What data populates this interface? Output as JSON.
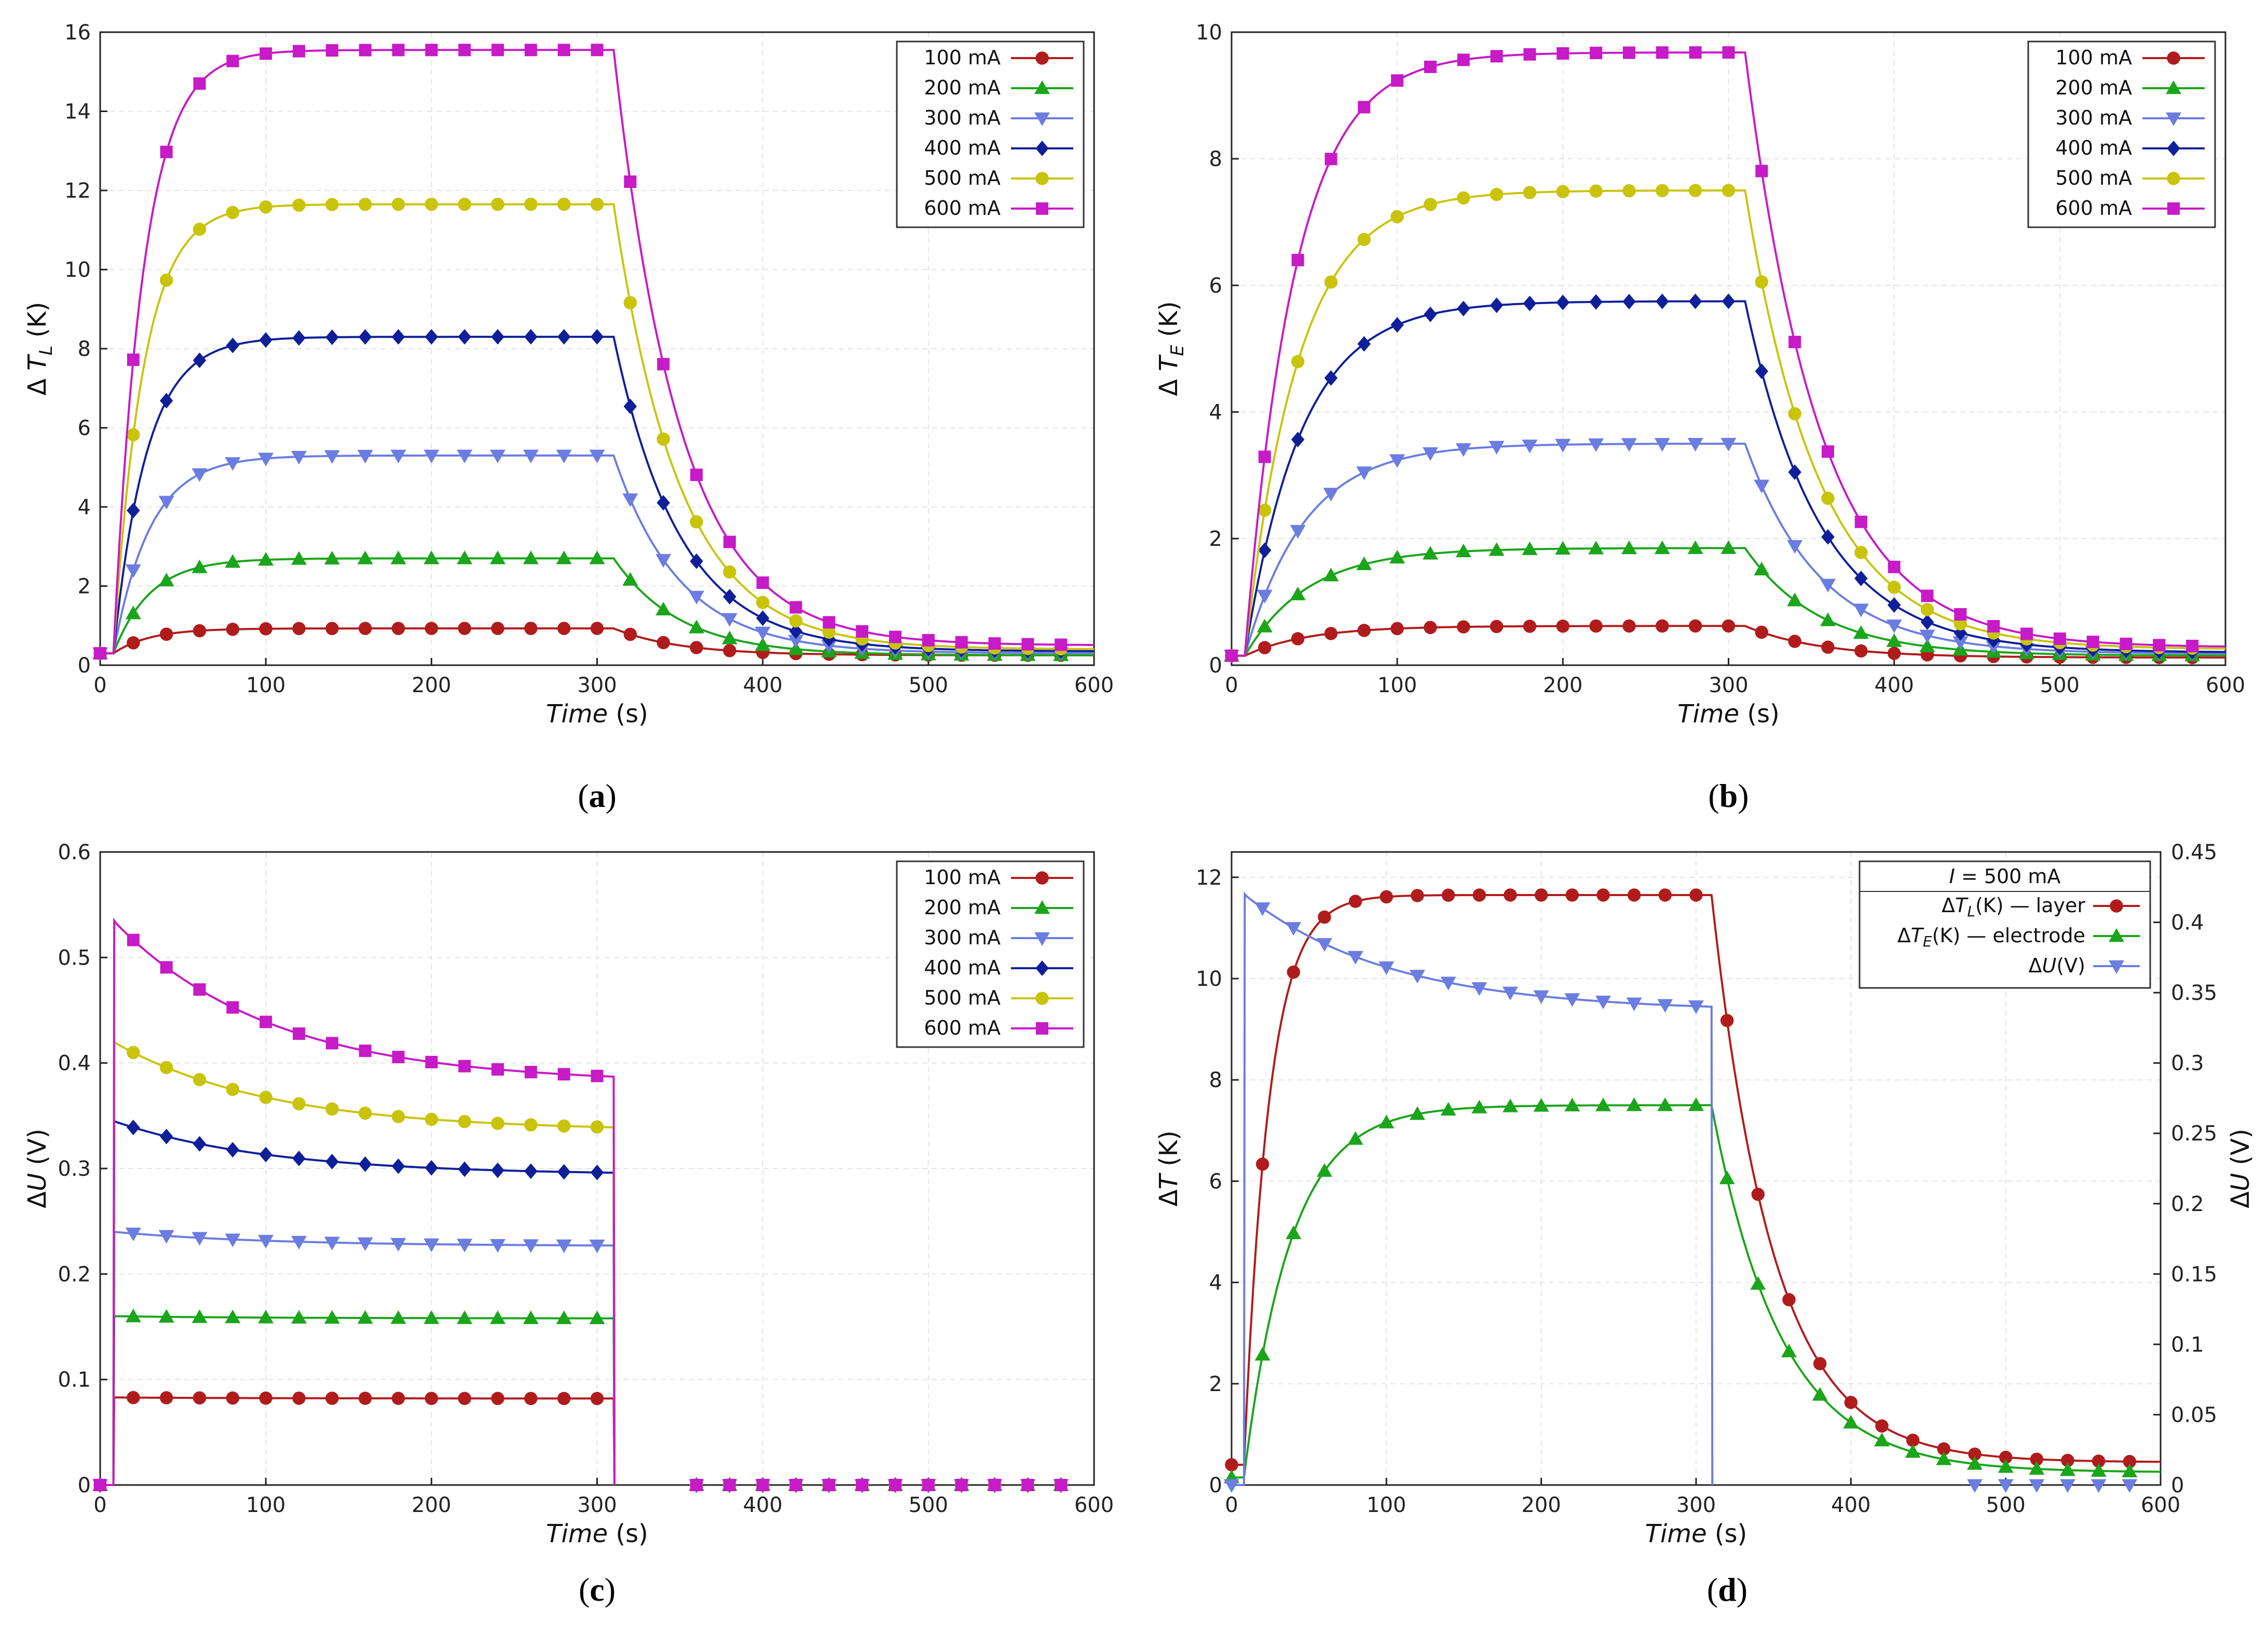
{
  "chart_data": [
    {
      "id": "a",
      "type": "line",
      "caption": "a",
      "xlabel": "Time",
      "xlabel_unit": "(s)",
      "ylabel": "Δ T",
      "ylabel_sub": "L",
      "ylabel_unit": "(K)",
      "xlim": [
        0,
        600
      ],
      "ylim": [
        0,
        16
      ],
      "xticks": [
        "0",
        "100",
        "200",
        "300",
        "400",
        "500",
        "600"
      ],
      "yticks": [
        "0",
        "2",
        "4",
        "6",
        "8",
        "10",
        "12",
        "14",
        "16"
      ],
      "grid": true,
      "legend_position": "top-right",
      "series": [
        {
          "name": "100 mA",
          "color": "#b01c1c",
          "marker": "circle",
          "plateau": 0.93,
          "baseline": 0.3,
          "tau_rise": 22,
          "tau_fall": 40,
          "end": 0.25
        },
        {
          "name": "200 mA",
          "color": "#1aa51a",
          "marker": "triangle",
          "plateau": 2.7,
          "baseline": 0.3,
          "tau_rise": 22,
          "tau_fall": 40,
          "end": 0.25
        },
        {
          "name": "300 mA",
          "color": "#6b7de0",
          "marker": "triangle-down",
          "plateau": 5.3,
          "baseline": 0.3,
          "tau_rise": 22,
          "tau_fall": 40,
          "end": 0.3
        },
        {
          "name": "400 mA",
          "color": "#0f1f99",
          "marker": "diamond",
          "plateau": 8.3,
          "baseline": 0.3,
          "tau_rise": 20,
          "tau_fall": 40,
          "end": 0.35
        },
        {
          "name": "500 mA",
          "color": "#c9c40a",
          "marker": "circle",
          "plateau": 11.65,
          "baseline": 0.3,
          "tau_rise": 18,
          "tau_fall": 40,
          "end": 0.4
        },
        {
          "name": "600 mA",
          "color": "#c61bc6",
          "marker": "square",
          "plateau": 15.55,
          "baseline": 0.3,
          "tau_rise": 18,
          "tau_fall": 40,
          "end": 0.5
        }
      ]
    },
    {
      "id": "b",
      "type": "line",
      "caption": "b",
      "xlabel": "Time",
      "xlabel_unit": "(s)",
      "ylabel": "Δ T",
      "ylabel_sub": "E",
      "ylabel_unit": "(K)",
      "xlim": [
        0,
        600
      ],
      "ylim": [
        0,
        10
      ],
      "xticks": [
        "0",
        "100",
        "200",
        "300",
        "400",
        "500",
        "600"
      ],
      "yticks": [
        "0",
        "2",
        "4",
        "6",
        "8",
        "10"
      ],
      "grid": true,
      "legend_position": "top-right",
      "series": [
        {
          "name": "100 mA",
          "color": "#b01c1c",
          "marker": "circle",
          "plateau": 0.62,
          "baseline": 0.15,
          "tau_rise": 38,
          "tau_fall": 45,
          "end": 0.12
        },
        {
          "name": "200 mA",
          "color": "#1aa51a",
          "marker": "triangle",
          "plateau": 1.85,
          "baseline": 0.15,
          "tau_rise": 38,
          "tau_fall": 45,
          "end": 0.15
        },
        {
          "name": "300 mA",
          "color": "#6b7de0",
          "marker": "triangle-down",
          "plateau": 3.5,
          "baseline": 0.15,
          "tau_rise": 36,
          "tau_fall": 45,
          "end": 0.18
        },
        {
          "name": "400 mA",
          "color": "#0f1f99",
          "marker": "diamond",
          "plateau": 5.75,
          "baseline": 0.15,
          "tau_rise": 34,
          "tau_fall": 45,
          "end": 0.2
        },
        {
          "name": "500 mA",
          "color": "#c9c40a",
          "marker": "circle",
          "plateau": 7.5,
          "baseline": 0.15,
          "tau_rise": 32,
          "tau_fall": 45,
          "end": 0.25
        },
        {
          "name": "600 mA",
          "color": "#c61bc6",
          "marker": "square",
          "plateau": 9.68,
          "baseline": 0.15,
          "tau_rise": 30,
          "tau_fall": 45,
          "end": 0.28
        }
      ]
    },
    {
      "id": "c",
      "type": "line",
      "caption": "c",
      "xlabel": "Time",
      "xlabel_unit": "(s)",
      "ylabel": "ΔU",
      "ylabel_unit": "(V)",
      "xlim": [
        0,
        600
      ],
      "ylim": [
        0,
        0.6
      ],
      "xticks": [
        "0",
        "100",
        "200",
        "300",
        "400",
        "500",
        "600"
      ],
      "yticks": [
        "0",
        "0.1",
        "0.2",
        "0.3",
        "0.4",
        "0.5",
        "0.6"
      ],
      "grid": true,
      "legend_position": "top-right",
      "series": [
        {
          "name": "100 mA",
          "color": "#b01c1c",
          "marker": "circle",
          "start": 0.083,
          "end": 0.082
        },
        {
          "name": "200 mA",
          "color": "#1aa51a",
          "marker": "triangle",
          "start": 0.16,
          "end": 0.158
        },
        {
          "name": "300 mA",
          "color": "#6b7de0",
          "marker": "triangle-down",
          "start": 0.24,
          "end": 0.227
        },
        {
          "name": "400 mA",
          "color": "#0f1f99",
          "marker": "diamond",
          "start": 0.345,
          "end": 0.296
        },
        {
          "name": "500 mA",
          "color": "#c9c40a",
          "marker": "circle",
          "start": 0.42,
          "end": 0.339
        },
        {
          "name": "600 mA",
          "color": "#c61bc6",
          "marker": "square",
          "start": 0.535,
          "end": 0.387
        }
      ]
    },
    {
      "id": "d",
      "type": "line",
      "caption": "d",
      "xlabel": "Time",
      "xlabel_unit": "(s)",
      "ylabel": "ΔT",
      "ylabel_unit": "(K)",
      "ylabel_right": "ΔU",
      "ylabel_right_unit": "(V)",
      "xlim": [
        0,
        600
      ],
      "ylim": [
        0,
        12.5
      ],
      "ylim_right": [
        0,
        0.45
      ],
      "xticks": [
        "0",
        "100",
        "200",
        "300",
        "400",
        "500",
        "600"
      ],
      "yticks": [
        "0",
        "2",
        "4",
        "6",
        "8",
        "10",
        "12"
      ],
      "yticks_right": [
        "0",
        "0.05",
        "0.1",
        "0.15",
        "0.2",
        "0.25",
        "0.3",
        "0.35",
        "0.4",
        "0.45"
      ],
      "grid": true,
      "legend_position": "top-right",
      "legend_title": "I = 500 mA",
      "series": [
        {
          "name": "ΔT",
          "sub": "L",
          "suffix": "(K) — layer",
          "color": "#b01c1c",
          "marker": "circle",
          "plateau": 11.65,
          "baseline": 0.4,
          "tau_rise": 16,
          "tau_fall": 40,
          "end": 0.45
        },
        {
          "name": "ΔT",
          "sub": "E",
          "suffix": "(K) — electrode",
          "color": "#1aa51a",
          "marker": "triangle",
          "plateau": 7.5,
          "baseline": 0.15,
          "tau_rise": 30,
          "tau_fall": 45,
          "end": 0.25
        },
        {
          "name": "ΔU",
          "sub": "",
          "suffix": "(V)",
          "color": "#6b7de0",
          "marker": "triangle-down",
          "start": 0.42,
          "end": 0.34,
          "axis": "right"
        }
      ]
    }
  ]
}
